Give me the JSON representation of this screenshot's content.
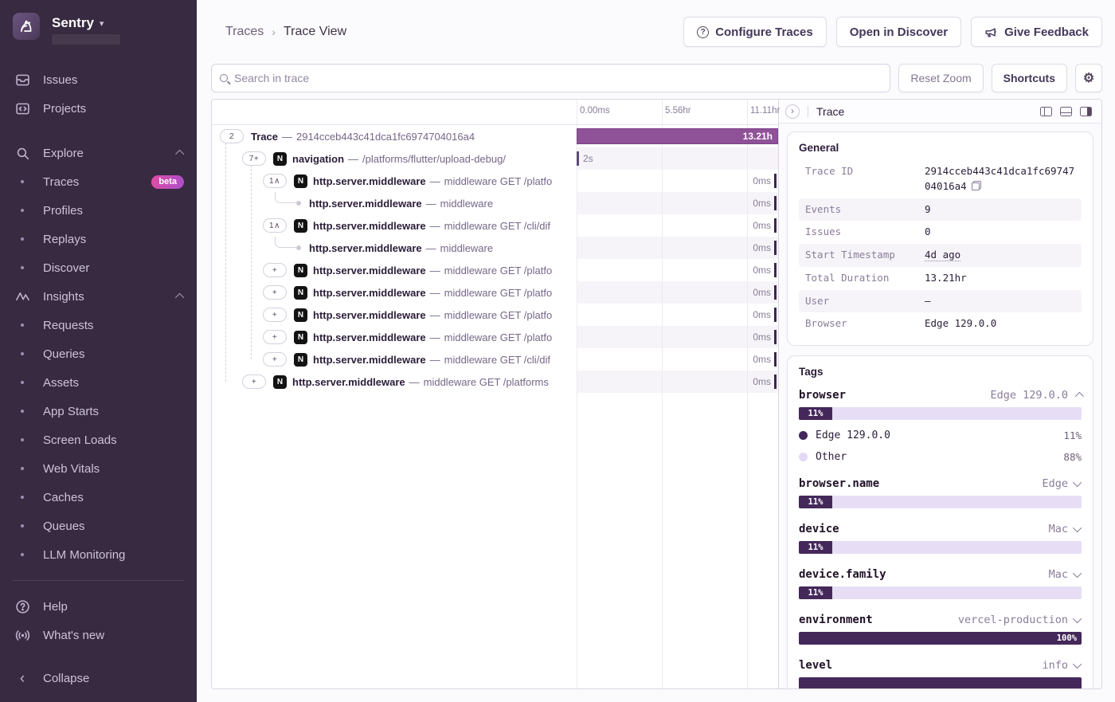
{
  "sidebar": {
    "brand": "Sentry",
    "items": [
      {
        "id": "issues",
        "label": "Issues",
        "icon": "issues-icon",
        "type": "top"
      },
      {
        "id": "projects",
        "label": "Projects",
        "icon": "projects-icon",
        "type": "top"
      },
      {
        "id": "explore",
        "label": "Explore",
        "icon": "search-icon",
        "type": "section",
        "gap": true
      },
      {
        "id": "traces",
        "label": "Traces",
        "type": "child",
        "badge": "beta"
      },
      {
        "id": "profiles",
        "label": "Profiles",
        "type": "child"
      },
      {
        "id": "replays",
        "label": "Replays",
        "type": "child"
      },
      {
        "id": "discover",
        "label": "Discover",
        "type": "child"
      },
      {
        "id": "insights",
        "label": "Insights",
        "icon": "insights-icon",
        "type": "section"
      },
      {
        "id": "requests",
        "label": "Requests",
        "type": "child"
      },
      {
        "id": "queries",
        "label": "Queries",
        "type": "child"
      },
      {
        "id": "assets",
        "label": "Assets",
        "type": "child"
      },
      {
        "id": "app-starts",
        "label": "App Starts",
        "type": "child"
      },
      {
        "id": "screen-loads",
        "label": "Screen Loads",
        "type": "child"
      },
      {
        "id": "web-vitals",
        "label": "Web Vitals",
        "type": "child"
      },
      {
        "id": "caches",
        "label": "Caches",
        "type": "child"
      },
      {
        "id": "queues",
        "label": "Queues",
        "type": "child"
      },
      {
        "id": "llm-monitoring",
        "label": "LLM Monitoring",
        "type": "child"
      }
    ],
    "footer": [
      {
        "id": "help",
        "label": "Help",
        "icon": "help-icon"
      },
      {
        "id": "whats-new",
        "label": "What's new",
        "icon": "broadcast-icon"
      }
    ],
    "collapse_label": "Collapse"
  },
  "header": {
    "breadcrumb": {
      "parent": "Traces",
      "separator": "›",
      "current": "Trace View"
    },
    "buttons": [
      {
        "id": "configure-traces",
        "label": "Configure Traces",
        "icon": "question-circle-icon"
      },
      {
        "id": "open-in-discover",
        "label": "Open in Discover"
      },
      {
        "id": "give-feedback",
        "label": "Give Feedback",
        "icon": "megaphone-icon"
      }
    ]
  },
  "toolbar": {
    "search_placeholder": "Search in trace",
    "reset_zoom_label": "Reset Zoom",
    "shortcuts_label": "Shortcuts",
    "settings_icon": "⚙"
  },
  "waterfall": {
    "axis_ticks": [
      "0.00ms",
      "5.56hr",
      "11.11hr"
    ],
    "separator": "—",
    "rows": [
      {
        "pill": "2",
        "indent": 0,
        "icon": false,
        "op": "Trace",
        "desc": "2914cceb443c41dca1fc6974704016a4",
        "bar": "full",
        "duration": "13.21h",
        "shade": false
      },
      {
        "pill": "7+",
        "indent": 1,
        "icon": true,
        "op": "navigation",
        "desc": "/platforms/flutter/upload-debug/",
        "bar": "left",
        "duration": "2s",
        "shade": true
      },
      {
        "pill": "1∧",
        "indent": 2,
        "icon": true,
        "op": "http.server.middleware",
        "desc": "middleware GET /platfo",
        "bar": "right",
        "duration": "0ms",
        "shade": false
      },
      {
        "pill": null,
        "indent": 3,
        "icon": false,
        "op": "http.server.middleware",
        "desc": "middleware",
        "bar": "right",
        "duration": "0ms",
        "shade": true
      },
      {
        "pill": "1∧",
        "indent": 2,
        "icon": true,
        "op": "http.server.middleware",
        "desc": "middleware GET /cli/dif",
        "bar": "right",
        "duration": "0ms",
        "shade": false
      },
      {
        "pill": null,
        "indent": 3,
        "icon": false,
        "op": "http.server.middleware",
        "desc": "middleware",
        "bar": "right",
        "duration": "0ms",
        "shade": true
      },
      {
        "pill": "+",
        "indent": 2,
        "icon": true,
        "op": "http.server.middleware",
        "desc": "middleware GET /platfo",
        "bar": "right",
        "duration": "0ms",
        "shade": false
      },
      {
        "pill": "+",
        "indent": 2,
        "icon": true,
        "op": "http.server.middleware",
        "desc": "middleware GET /platfo",
        "bar": "right",
        "duration": "0ms",
        "shade": true
      },
      {
        "pill": "+",
        "indent": 2,
        "icon": true,
        "op": "http.server.middleware",
        "desc": "middleware GET /platfo",
        "bar": "right",
        "duration": "0ms",
        "shade": false
      },
      {
        "pill": "+",
        "indent": 2,
        "icon": true,
        "op": "http.server.middleware",
        "desc": "middleware GET /platfo",
        "bar": "right",
        "duration": "0ms",
        "shade": true
      },
      {
        "pill": "+",
        "indent": 2,
        "icon": true,
        "op": "http.server.middleware",
        "desc": "middleware GET /cli/dif",
        "bar": "right",
        "duration": "0ms",
        "shade": false
      },
      {
        "pill": "+",
        "indent": 1,
        "icon": true,
        "op": "http.server.middleware",
        "desc": "middleware GET /platforms",
        "bar": "right",
        "duration": "0ms",
        "shade": true
      }
    ]
  },
  "trace_panel": {
    "title": "Trace",
    "general": {
      "title": "General",
      "rows": [
        {
          "label": "Trace ID",
          "value": "2914cceb443c41dca1fc6974704016a4",
          "copy": true
        },
        {
          "label": "Events",
          "value": "9"
        },
        {
          "label": "Issues",
          "value": "0"
        },
        {
          "label": "Start Timestamp",
          "value": "4d ago",
          "underline": true
        },
        {
          "label": "Total Duration",
          "value": "13.21hr"
        },
        {
          "label": "User",
          "value": "—"
        },
        {
          "label": "Browser",
          "value": "Edge 129.0.0"
        }
      ]
    },
    "tags": {
      "title": "Tags",
      "items": [
        {
          "name": "browser",
          "value": "Edge 129.0.0",
          "expanded": true,
          "pct": 11,
          "pct_label": "11%",
          "breakdown": [
            {
              "label": "Edge 129.0.0",
              "pct": "11%",
              "dot": "dark"
            },
            {
              "label": "Other",
              "pct": "88%",
              "dot": "light"
            }
          ]
        },
        {
          "name": "browser.name",
          "value": "Edge",
          "expanded": false,
          "pct": 11,
          "pct_label": "11%"
        },
        {
          "name": "device",
          "value": "Mac",
          "expanded": false,
          "pct": 11,
          "pct_label": "11%"
        },
        {
          "name": "device.family",
          "value": "Mac",
          "expanded": false,
          "pct": 11,
          "pct_label": "11%"
        },
        {
          "name": "environment",
          "value": "vercel-production",
          "expanded": false,
          "pct": 100,
          "pct_label": "100%"
        },
        {
          "name": "level",
          "value": "info",
          "expanded": false,
          "pct": 100,
          "pct_label": ""
        }
      ]
    }
  },
  "colors": {
    "trace_bar": "#8f5198",
    "tag_fill": "#44285a",
    "tag_track": "#e7def6",
    "sidebar_bg": "#382a40"
  }
}
